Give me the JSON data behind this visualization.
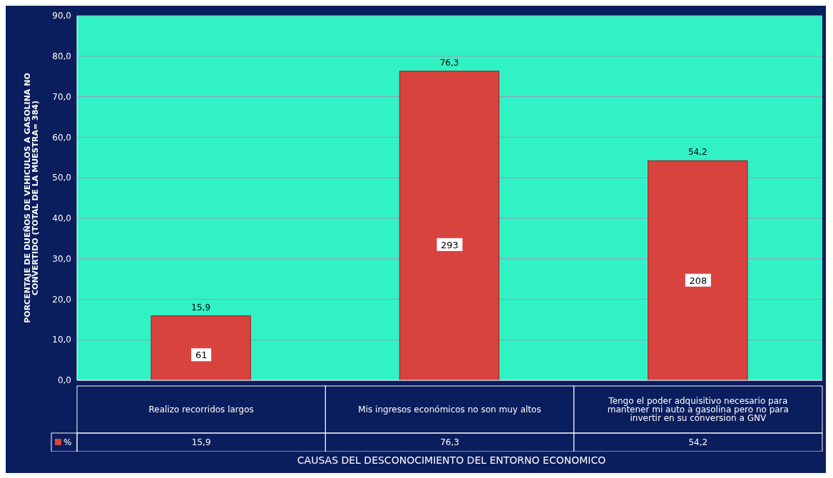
{
  "chart_data": {
    "type": "bar",
    "ylabel": "PORCENTAJE  DE DUEÑOS DE VEHICULOS A GASOLINA NO CONVERTIDO (TOTAL DE LA MUESTRA= 384)",
    "xlabel": "CAUSAS DEL DESCONOCIMIENTO DEL ENTORNO ECONOMICO",
    "categories": [
      "Realizo recorridos largos",
      "Mis ingresos económicos no  son muy altos",
      "Tengo el poder  adquisitivo necesario para mantener mi auto a gasolina pero no para invertir en su conversion a GNV"
    ],
    "series": [
      {
        "name": "%",
        "color": "#d8433e",
        "values": [
          15.9,
          76.3,
          54.2
        ],
        "value_labels": [
          "15,9",
          "76,3",
          "54,2"
        ]
      }
    ],
    "ylim": [
      0,
      90
    ],
    "yticks": [
      {
        "value": 0,
        "label": "0,0"
      },
      {
        "value": 10,
        "label": "10,0"
      },
      {
        "value": 20,
        "label": "20,0"
      },
      {
        "value": 30,
        "label": "30,0"
      },
      {
        "value": 40,
        "label": "40,0"
      },
      {
        "value": 50,
        "label": "50,0"
      },
      {
        "value": 60,
        "label": "60,0"
      },
      {
        "value": 70,
        "label": "70,0"
      },
      {
        "value": 80,
        "label": "80,0"
      },
      {
        "value": 90,
        "label": "90,0"
      }
    ],
    "annotations": [
      {
        "text": "61",
        "x": "Realizo recorridos largos",
        "y": 6.3
      },
      {
        "text": "293",
        "x": "Mis ingresos económicos no  son muy altos",
        "y": 33.5
      },
      {
        "text": "208",
        "x": "Tengo el poder  adquisitivo necesario para mantener mi auto a gasolina pero no para invertir en su conversion a GNV",
        "y": 24.7
      }
    ],
    "grid": "y",
    "legend": "bottom left"
  }
}
